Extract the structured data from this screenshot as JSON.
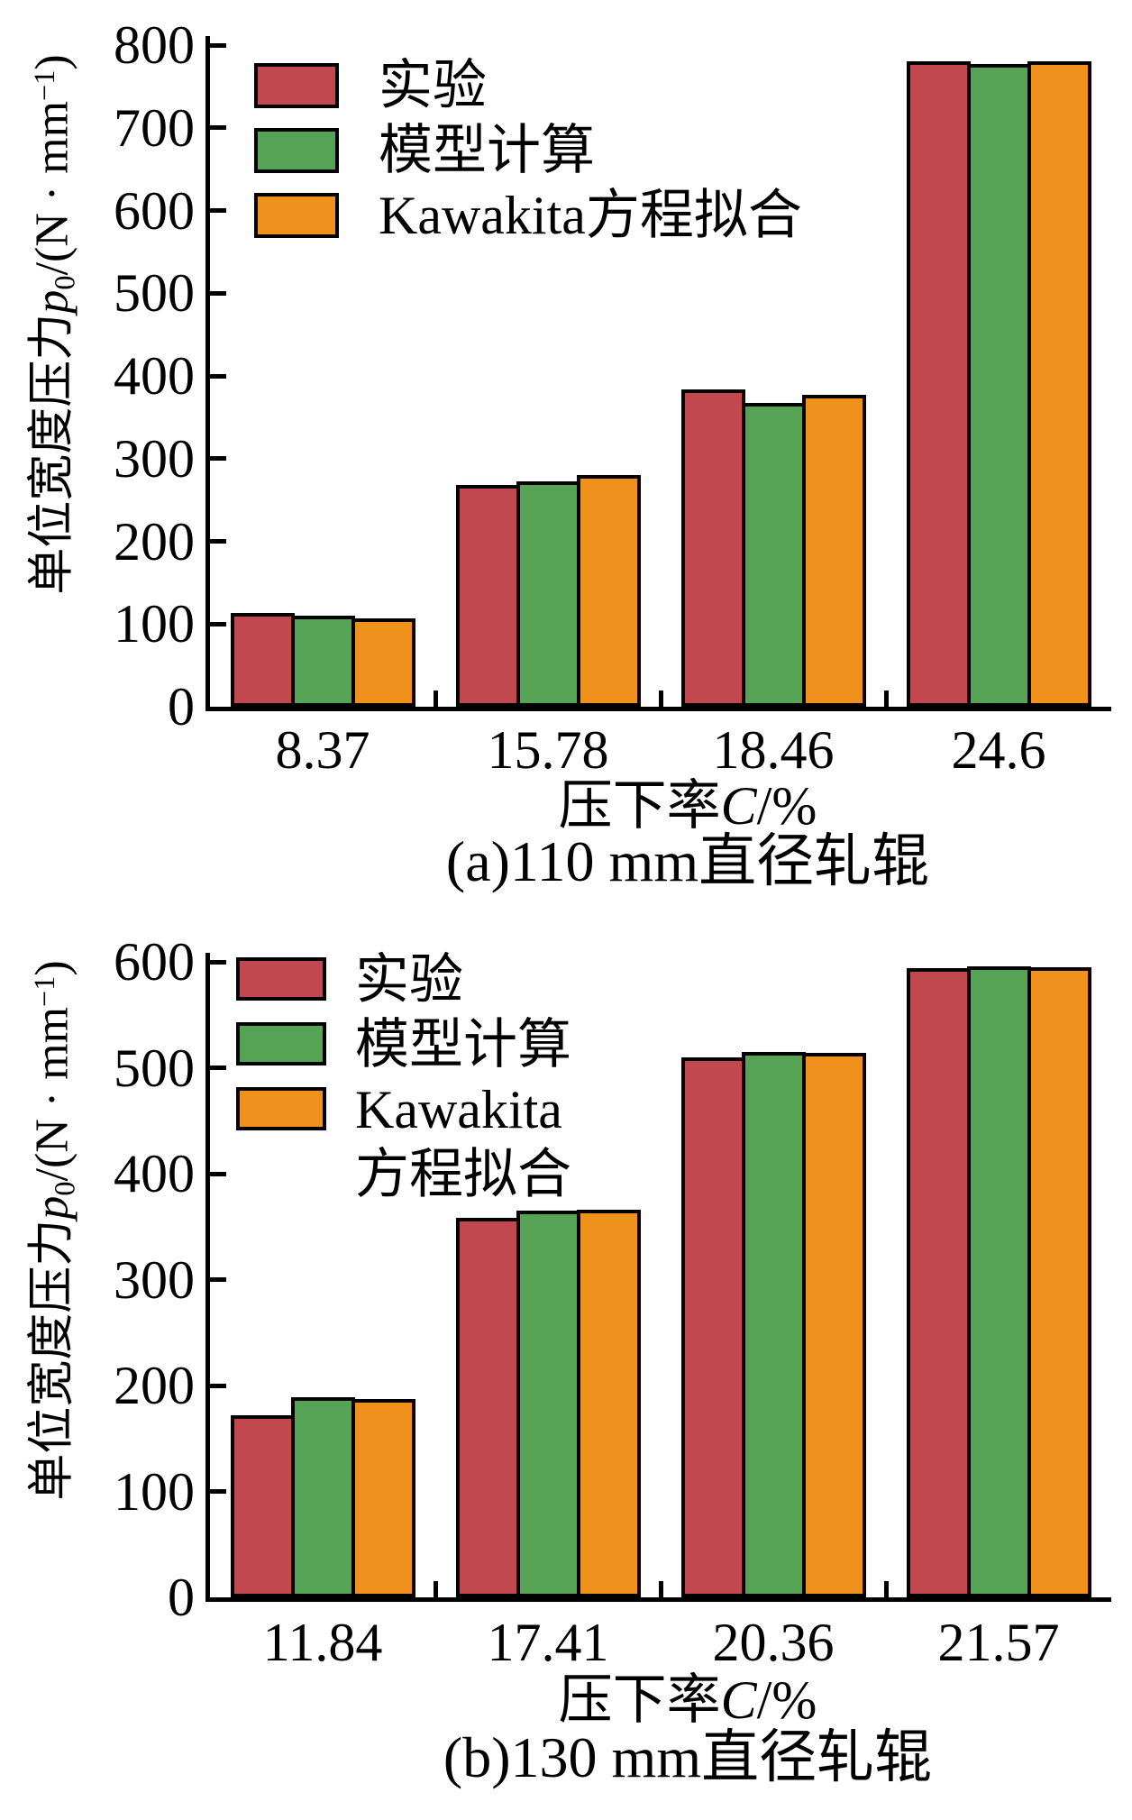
{
  "figure": {
    "background": "#ffffff",
    "outline_color": "#000000"
  },
  "chart_data": [
    {
      "type": "bar",
      "panel": "a",
      "caption": "(a)110 mm直径轧辊",
      "xlabel_text": "压下率C/%",
      "xlabel_runs": [
        {
          "t": "压下率"
        },
        {
          "t": "C",
          "style": "italic"
        },
        {
          "t": "/%"
        }
      ],
      "ylabel_text": "单位宽度压力p0/(N · mm−1)",
      "ylabel_runs": [
        {
          "t": "单位宽度压力"
        },
        {
          "t": "p",
          "style": "italic"
        },
        {
          "t": "0",
          "style": "sub"
        },
        {
          "t": "/(N · mm"
        },
        {
          "t": "−1",
          "style": "sup"
        },
        {
          "t": ")"
        }
      ],
      "categories": [
        "8.37",
        "15.78",
        "18.46",
        "24.6"
      ],
      "series": [
        {
          "key": "experiment",
          "name": "实验",
          "color": "#C1484F",
          "values": [
            113,
            268,
            384,
            780
          ]
        },
        {
          "key": "model",
          "name": "模型计算",
          "color": "#56A356",
          "values": [
            110,
            272,
            367,
            777
          ]
        },
        {
          "key": "kawakita",
          "name": "Kawakita方程拟合",
          "color": "#F0911D",
          "values": [
            107,
            280,
            377,
            780
          ]
        }
      ],
      "legend": [
        {
          "key": "experiment",
          "lines": [
            "实验"
          ]
        },
        {
          "key": "model",
          "lines": [
            "模型计算"
          ]
        },
        {
          "key": "kawakita",
          "lines": [
            "Kawakita方程拟合"
          ]
        }
      ],
      "ylim": [
        0,
        800
      ],
      "ytick_step": 100,
      "grid": false,
      "legend_position": "top-left"
    },
    {
      "type": "bar",
      "panel": "b",
      "caption": "(b)130 mm直径轧辊",
      "xlabel_text": "压下率C/%",
      "xlabel_runs": [
        {
          "t": "压下率"
        },
        {
          "t": "C",
          "style": "italic"
        },
        {
          "t": "/%"
        }
      ],
      "ylabel_text": "单位宽度压力p0/(N · mm−1)",
      "ylabel_runs": [
        {
          "t": "单位宽度压力"
        },
        {
          "t": "p",
          "style": "italic"
        },
        {
          "t": "0",
          "style": "sub"
        },
        {
          "t": "/(N · mm"
        },
        {
          "t": "−1",
          "style": "sup"
        },
        {
          "t": ")"
        }
      ],
      "categories": [
        "11.84",
        "17.41",
        "20.36",
        "21.57"
      ],
      "series": [
        {
          "key": "experiment",
          "name": "实验",
          "color": "#C1484F",
          "values": [
            172,
            358,
            510,
            594
          ]
        },
        {
          "key": "model",
          "name": "模型计算",
          "color": "#56A356",
          "values": [
            189,
            365,
            515,
            596
          ]
        },
        {
          "key": "kawakita",
          "name": "Kawakita方程拟合",
          "color": "#F0911D",
          "values": [
            187,
            366,
            514,
            595
          ]
        }
      ],
      "legend": [
        {
          "key": "experiment",
          "lines": [
            "实验"
          ]
        },
        {
          "key": "model",
          "lines": [
            "模型计算"
          ]
        },
        {
          "key": "kawakita",
          "lines": [
            "Kawakita",
            "方程拟合"
          ]
        }
      ],
      "ylim": [
        0,
        600
      ],
      "ytick_step": 100,
      "grid": false,
      "legend_position": "top-left"
    }
  ]
}
